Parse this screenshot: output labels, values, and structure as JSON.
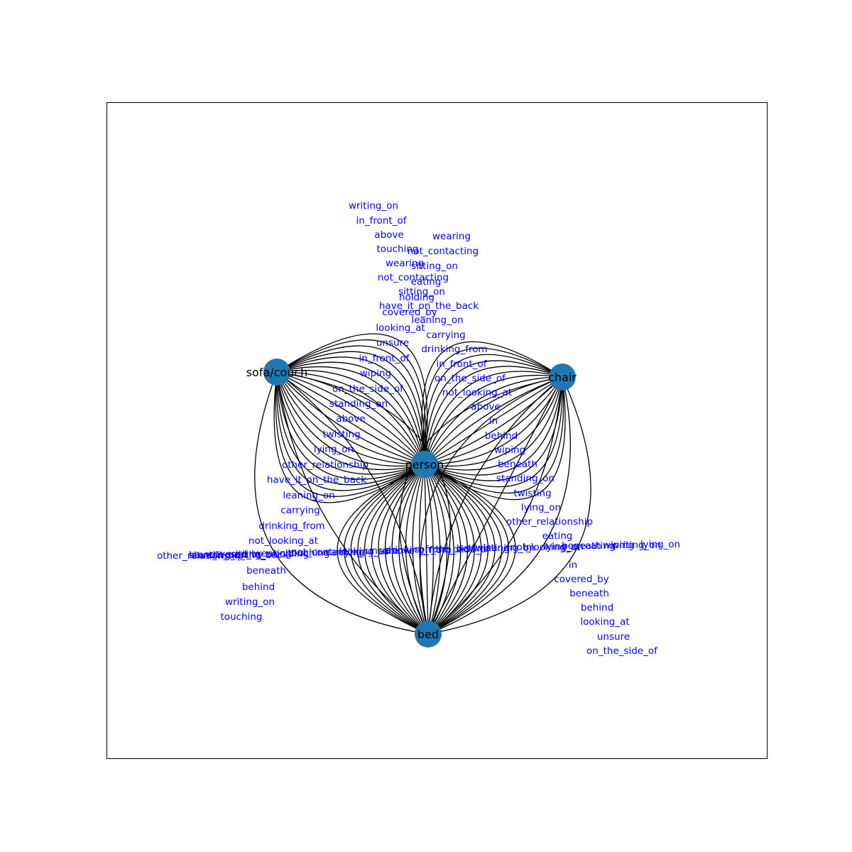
{
  "colors": {
    "node_fill": "#1f77b4",
    "edge_stroke": "#000000",
    "edge_label": "#0000ff",
    "node_label": "#000000"
  },
  "nodes": [
    {
      "id": "person",
      "label": "person"
    },
    {
      "id": "sofa",
      "label": "sofa/couch"
    },
    {
      "id": "chair",
      "label": "chair"
    },
    {
      "id": "bed",
      "label": "bed"
    }
  ],
  "edge_groups": [
    {
      "source": "person",
      "target": "sofa",
      "labels": [
        "writing_on",
        "in_front_of",
        "above",
        "touching",
        "wearing",
        "not_contacting",
        "sitting_on",
        "have_it_on_the_back",
        "covered_by",
        "looking_at",
        "unsure",
        "in_front_of",
        "wiping",
        "on_the_side_of",
        "standing_on",
        "above",
        "twisting",
        "lying_on",
        "other_relationship",
        "have_it_on_the_back",
        "leaning_on",
        "carrying",
        "drinking_from",
        "not_looking_at"
      ]
    },
    {
      "source": "person",
      "target": "chair",
      "labels": [
        "wearing",
        "not_contacting",
        "sitting_on",
        "eating",
        "holding",
        "leaning_on",
        "carrying",
        "drinking_from",
        "in_front_of",
        "on_the_side_of",
        "not_looking_at",
        "above",
        "in",
        "behind",
        "wiping",
        "beneath",
        "standing_on",
        "twisting",
        "lying_on",
        "other_relationship",
        "eating"
      ]
    },
    {
      "source": "person",
      "target": "bed",
      "labels": [
        "other_relationship",
        "standing_on",
        "covered_by",
        "sitting_on",
        "wearing",
        "holding",
        "touching",
        "not_contacting",
        "carrying",
        "looking_at",
        "unsure",
        "above",
        "drinking_from",
        "in_front_of",
        "on_the_side_of",
        "behind",
        "twisting",
        "leaning_on",
        "in",
        "not_looking_at",
        "lying_on",
        "beneath",
        "eating",
        "wiping",
        "writing_on",
        "have_it_on_the_back",
        "lying_on"
      ]
    },
    {
      "source": "bed",
      "target": "sofa",
      "labels": [
        "beneath",
        "behind",
        "writing_on",
        "touching"
      ]
    },
    {
      "source": "bed",
      "target": "chair",
      "labels": [
        "in",
        "covered_by",
        "beneath",
        "behind",
        "looking_at",
        "unsure",
        "on_the_side_of"
      ]
    }
  ]
}
